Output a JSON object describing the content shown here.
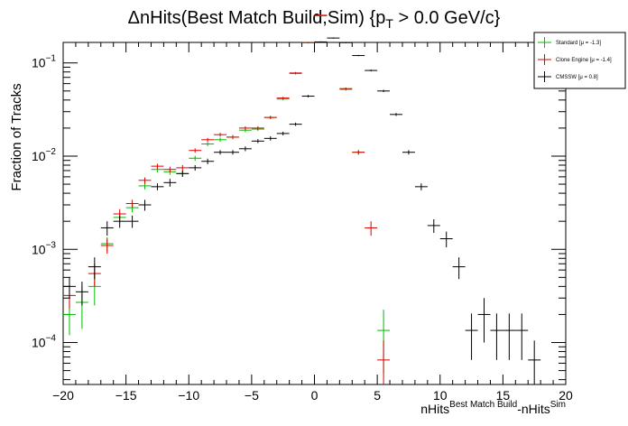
{
  "chart_data": {
    "type": "scatter",
    "title": "ΔnHits(Best Match Build,Sim) {p",
    "title_sub": "T",
    "title_end": " > 0.0 GeV/c}",
    "xlabel_parts": [
      "nHits",
      "Best Match Build",
      "-nHits",
      "Sim"
    ],
    "ylabel": "Fraction of Tracks",
    "xlim": [
      -20,
      20
    ],
    "ylim_log10": [
      -4.45,
      -0.78
    ],
    "y_scale": "log",
    "x_ticks": [
      -20,
      -15,
      -10,
      -5,
      0,
      5,
      10,
      15,
      20
    ],
    "x_tick_labels": [
      "−20",
      "−15",
      "−10",
      "−5",
      "0",
      "5",
      "10",
      "15",
      "20"
    ],
    "y_ticks": [
      {
        "base": "10",
        "exp": "−1",
        "value": 0.1
      },
      {
        "base": "10",
        "exp": "−2",
        "value": 0.01
      },
      {
        "base": "10",
        "exp": "−3",
        "value": 0.001
      },
      {
        "base": "10",
        "exp": "−4",
        "value": 0.0001
      }
    ],
    "legend_placement": "top-right",
    "series": [
      {
        "name": "Standard",
        "legend_label": "Standard  [μ = -1.3]",
        "color": "#00bb00",
        "points": [
          [
            -19.5,
            0.0002,
            8e-05
          ],
          [
            -18.5,
            0.00027,
            0.00013
          ],
          [
            -17.5,
            0.0004,
            0.00015
          ],
          [
            -16.5,
            0.00115,
            0.0002
          ],
          [
            -15.5,
            0.0022,
            0.0003
          ],
          [
            -14.5,
            0.0028,
            0.0003
          ],
          [
            -13.5,
            0.0048,
            0.0004
          ],
          [
            -12.5,
            0.0072,
            0.0005
          ],
          [
            -11.5,
            0.0068,
            0.0005
          ],
          [
            -10.5,
            0.0065,
            0.0005
          ],
          [
            -9.5,
            0.0095,
            0.0006
          ],
          [
            -8.5,
            0.0135,
            0.0007
          ],
          [
            -7.5,
            0.015,
            0.0008
          ],
          [
            -6.5,
            0.016,
            0.0008
          ],
          [
            -5.5,
            0.019,
            0.0009
          ],
          [
            -4.5,
            0.0195,
            0.0009
          ],
          [
            -3.5,
            0.026,
            0.001
          ],
          [
            -2.5,
            0.041,
            0.0013
          ],
          [
            -1.5,
            0.077,
            0.002
          ],
          [
            -0.5,
            0.165,
            0.003
          ],
          [
            0.5,
            0.32,
            0.004
          ],
          [
            2.5,
            0.052,
            0.0015
          ],
          [
            3.5,
            0.011,
            0.0006
          ],
          [
            5.5,
            0.000135,
            9e-05
          ]
        ]
      },
      {
        "name": "Clone Engine",
        "legend_label": "Clone Engine  [μ = -1.4]",
        "color": "#dd0000",
        "points": [
          [
            -19.5,
            0.00032,
            9e-05
          ],
          [
            -17.5,
            0.00055,
            0.00015
          ],
          [
            -16.5,
            0.0011,
            0.0002
          ],
          [
            -15.5,
            0.0024,
            0.0003
          ],
          [
            -14.5,
            0.0031,
            0.0003
          ],
          [
            -13.5,
            0.0055,
            0.0004
          ],
          [
            -12.5,
            0.0078,
            0.0005
          ],
          [
            -11.5,
            0.0072,
            0.0005
          ],
          [
            -10.5,
            0.0075,
            0.0005
          ],
          [
            -9.5,
            0.0115,
            0.0006
          ],
          [
            -8.5,
            0.015,
            0.0007
          ],
          [
            -7.5,
            0.017,
            0.0008
          ],
          [
            -6.5,
            0.016,
            0.0008
          ],
          [
            -5.5,
            0.02,
            0.0009
          ],
          [
            -4.5,
            0.02,
            0.0009
          ],
          [
            -3.5,
            0.026,
            0.001
          ],
          [
            -2.5,
            0.042,
            0.0013
          ],
          [
            -1.5,
            0.078,
            0.002
          ],
          [
            -0.5,
            0.165,
            0.003
          ],
          [
            0.5,
            0.325,
            0.004
          ],
          [
            2.5,
            0.053,
            0.0015
          ],
          [
            3.5,
            0.011,
            0.0006
          ],
          [
            4.5,
            0.0017,
            0.0003
          ],
          [
            5.5,
            6.5e-05,
            4e-05
          ]
        ]
      },
      {
        "name": "CMSSW",
        "legend_label": "CMSSW  [μ = 0.8]",
        "color": "#000000",
        "points": [
          [
            -19.5,
            0.0004,
            0.0001
          ],
          [
            -18.5,
            0.00035,
            0.0001
          ],
          [
            -17.5,
            0.00065,
            0.00017
          ],
          [
            -16.5,
            0.0017,
            0.0003
          ],
          [
            -15.5,
            0.002,
            0.0003
          ],
          [
            -14.5,
            0.002,
            0.0003
          ],
          [
            -13.5,
            0.003,
            0.0004
          ],
          [
            -12.5,
            0.0047,
            0.0004
          ],
          [
            -11.5,
            0.0052,
            0.0005
          ],
          [
            -10.5,
            0.0065,
            0.0005
          ],
          [
            -9.5,
            0.0075,
            0.0005
          ],
          [
            -8.5,
            0.0088,
            0.0006
          ],
          [
            -7.5,
            0.011,
            0.0006
          ],
          [
            -6.5,
            0.011,
            0.0006
          ],
          [
            -5.5,
            0.012,
            0.0007
          ],
          [
            -4.5,
            0.0145,
            0.0007
          ],
          [
            -3.5,
            0.0155,
            0.0008
          ],
          [
            -2.5,
            0.0175,
            0.0008
          ],
          [
            -1.5,
            0.022,
            0.0009
          ],
          [
            -0.5,
            0.044,
            0.0013
          ],
          [
            0.5,
            0.168,
            0.0025
          ],
          [
            1.5,
            0.185,
            0.0027
          ],
          [
            2.5,
            0.165,
            0.0025
          ],
          [
            3.5,
            0.12,
            0.002
          ],
          [
            4.5,
            0.083,
            0.0018
          ],
          [
            5.5,
            0.05,
            0.0014
          ],
          [
            6.5,
            0.028,
            0.001
          ],
          [
            7.5,
            0.011,
            0.0006
          ],
          [
            8.5,
            0.0047,
            0.0004
          ],
          [
            9.5,
            0.0018,
            0.0003
          ],
          [
            10.5,
            0.0013,
            0.00025
          ],
          [
            11.5,
            0.00065,
            0.00017
          ],
          [
            12.5,
            0.000135,
            7e-05
          ],
          [
            13.5,
            0.0002,
            0.0001
          ],
          [
            14.5,
            0.000135,
            7e-05
          ],
          [
            15.5,
            0.000135,
            7e-05
          ],
          [
            16.5,
            0.000135,
            7e-05
          ],
          [
            17.5,
            6.5e-05,
            4e-05
          ]
        ]
      }
    ]
  }
}
